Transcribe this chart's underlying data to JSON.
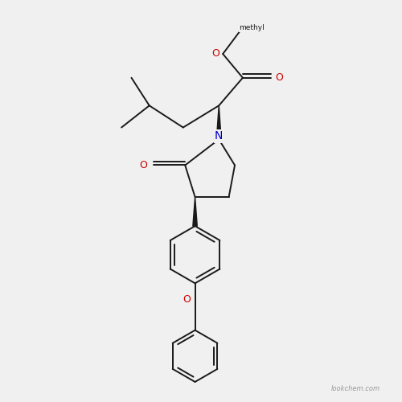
{
  "bg_color": "#f0f0f0",
  "line_color": "#1a1a1a",
  "o_color": "#cc0000",
  "n_color": "#0000cc",
  "bond_width": 1.4,
  "figsize": [
    5.0,
    5.0
  ],
  "dpi": 100,
  "xlim": [
    0,
    10
  ],
  "ylim": [
    0,
    10
  ],
  "watermark": "lookchem.com",
  "watermark_color": "#999999",
  "watermark_fs": 6
}
